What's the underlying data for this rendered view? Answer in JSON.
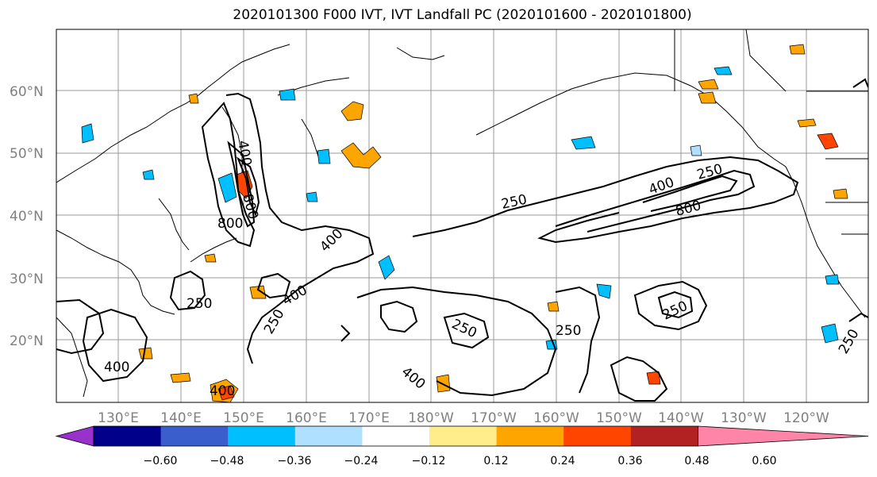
{
  "title": "2020101300 F000 IVT, IVT Landfall PC (2020101600 - 2020101800)",
  "lat_labels": [
    "60°N",
    "50°N",
    "40°N",
    "30°N",
    "20°N"
  ],
  "lon_labels": [
    "130°E",
    "140°E",
    "150°E",
    "160°E",
    "170°E",
    "180°W",
    "170°W",
    "160°W",
    "150°W",
    "140°W",
    "130°W",
    "120°W"
  ],
  "contour_labels": [
    "400",
    "800",
    "250",
    "400",
    "800",
    "250",
    "400",
    "800",
    "250",
    "400",
    "250",
    "250",
    "250",
    "400",
    "400",
    "400",
    "250",
    "250"
  ],
  "colorbar": {
    "colors": [
      "#9932cc",
      "#00008b",
      "#3a5fcd",
      "#00bfff",
      "#b0e0ff",
      "#ffffff",
      "#ffec8b",
      "#ffa500",
      "#ff4500",
      "#b22222",
      "#ff85a8"
    ],
    "tick_labels": [
      "−0.60",
      "−0.48",
      "−0.36",
      "−0.24",
      "−0.12",
      "0.12",
      "0.24",
      "0.36",
      "0.48",
      "0.60"
    ]
  }
}
